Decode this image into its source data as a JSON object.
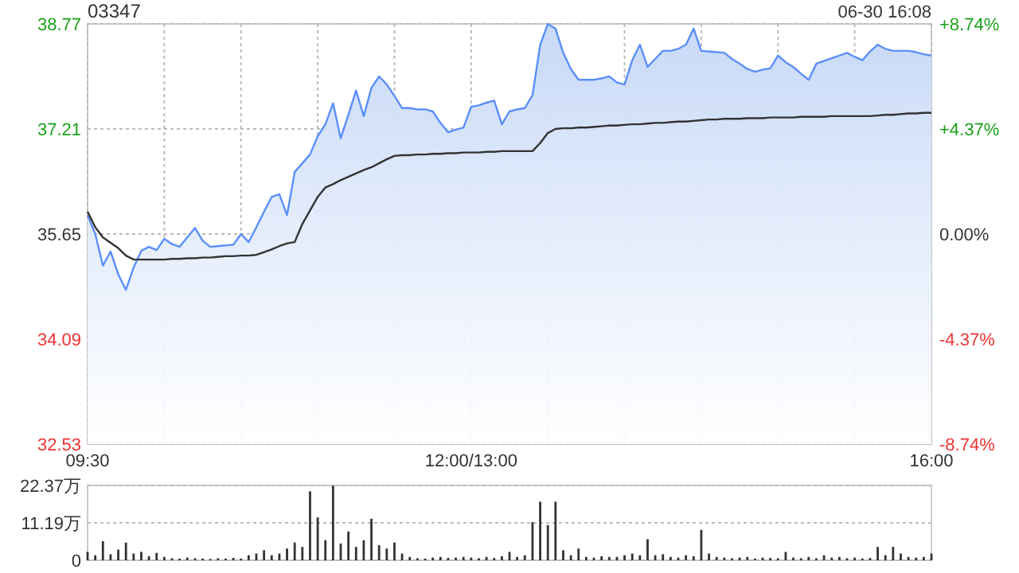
{
  "chart_data": [
    {
      "type": "area",
      "title": "03347",
      "annotations": [
        "06-30 16:08"
      ],
      "categories": [
        "09:30",
        null,
        null,
        null,
        null,
        null,
        null,
        null,
        null,
        null,
        null,
        null,
        null,
        null,
        null,
        null,
        null,
        null,
        null,
        null,
        null,
        null,
        null,
        null,
        null,
        null,
        null,
        null,
        null,
        null,
        null,
        null,
        null,
        null,
        null,
        null,
        null,
        null,
        null,
        null,
        null,
        null,
        null,
        null,
        null,
        null,
        null,
        null,
        null,
        null,
        "12:00/13:00",
        null,
        null,
        null,
        null,
        null,
        null,
        null,
        null,
        null,
        null,
        null,
        null,
        null,
        null,
        null,
        null,
        null,
        null,
        null,
        null,
        null,
        null,
        null,
        null,
        null,
        null,
        null,
        null,
        null,
        null,
        null,
        null,
        null,
        null,
        null,
        null,
        null,
        null,
        null,
        null,
        null,
        null,
        null,
        null,
        null,
        null,
        null,
        null,
        null,
        null,
        null,
        null,
        null,
        null,
        null,
        null,
        null,
        null,
        null,
        "16:00"
      ],
      "ylim": [
        32.53,
        38.77
      ],
      "yticks": [
        32.53,
        34.09,
        35.65,
        37.21,
        38.77
      ],
      "y2lim": [
        -8.74,
        8.74
      ],
      "y2ticks": [
        {
          "value": -8.74,
          "label": "-8.74%"
        },
        {
          "value": -4.37,
          "label": "-4.37%"
        },
        {
          "value": 0,
          "label": "0.00%"
        },
        {
          "value": 4.37,
          "label": "+4.37%"
        },
        {
          "value": 8.74,
          "label": "+8.74%"
        }
      ],
      "grid": true,
      "series": [
        {
          "color": "#5b8ff9",
          "values": [
            35.93,
            35.65,
            35.18,
            35.39,
            35.05,
            34.82,
            35.15,
            35.4,
            35.46,
            35.41,
            35.58,
            35.5,
            35.46,
            35.6,
            35.74,
            35.55,
            35.46,
            35.47,
            35.48,
            35.49,
            35.65,
            35.53,
            35.75,
            35.98,
            36.2,
            36.24,
            35.93,
            36.57,
            36.7,
            36.83,
            37.1,
            37.28,
            37.59,
            37.07,
            37.42,
            37.78,
            37.4,
            37.82,
            37.99,
            37.87,
            37.7,
            37.52,
            37.52,
            37.5,
            37.5,
            37.47,
            37.3,
            37.16,
            37.2,
            37.23,
            37.54,
            37.56,
            37.6,
            37.63,
            37.28,
            37.47,
            37.5,
            37.52,
            37.71,
            38.46,
            38.77,
            38.7,
            38.34,
            38.1,
            37.94,
            37.94,
            37.94,
            37.96,
            37.99,
            37.9,
            37.87,
            38.23,
            38.46,
            38.13,
            38.25,
            38.37,
            38.37,
            38.4,
            38.46,
            38.7,
            38.37,
            38.36,
            38.35,
            38.34,
            38.25,
            38.18,
            38.1,
            38.06,
            38.09,
            38.11,
            38.3,
            38.2,
            38.13,
            38.03,
            37.94,
            38.18,
            38.22,
            38.26,
            38.3,
            38.34,
            38.28,
            38.23,
            38.36,
            38.46,
            38.4,
            38.37,
            38.37,
            38.37,
            38.35,
            38.32,
            38.3
          ]
        },
        {
          "type": "line",
          "color": "#333333",
          "values": [
            35.98,
            35.75,
            35.6,
            35.52,
            35.44,
            35.33,
            35.27,
            35.27,
            35.27,
            35.27,
            35.27,
            35.28,
            35.28,
            35.29,
            35.29,
            35.3,
            35.3,
            35.31,
            35.32,
            35.32,
            35.33,
            35.33,
            35.34,
            35.38,
            35.42,
            35.47,
            35.51,
            35.53,
            35.8,
            36.0,
            36.2,
            36.34,
            36.39,
            36.45,
            36.5,
            36.55,
            36.6,
            36.64,
            36.7,
            36.76,
            36.81,
            36.82,
            36.82,
            36.83,
            36.83,
            36.84,
            36.84,
            36.85,
            36.85,
            36.86,
            36.86,
            36.86,
            36.87,
            36.87,
            36.88,
            36.88,
            36.88,
            36.88,
            36.88,
            37.0,
            37.15,
            37.21,
            37.22,
            37.22,
            37.23,
            37.23,
            37.24,
            37.25,
            37.26,
            37.26,
            37.27,
            37.28,
            37.28,
            37.29,
            37.3,
            37.3,
            37.31,
            37.32,
            37.32,
            37.33,
            37.34,
            37.35,
            37.35,
            37.36,
            37.36,
            37.36,
            37.37,
            37.37,
            37.37,
            37.38,
            37.38,
            37.38,
            37.38,
            37.39,
            37.39,
            37.39,
            37.39,
            37.4,
            37.4,
            37.4,
            37.4,
            37.4,
            37.4,
            37.41,
            37.42,
            37.42,
            37.43,
            37.44,
            37.44,
            37.45,
            37.45
          ]
        }
      ]
    },
    {
      "type": "bar",
      "color": "#333333",
      "tick_labels": "y",
      "grid": "y",
      "categories": [
        null,
        null,
        null,
        null,
        null,
        null,
        null,
        null,
        null,
        null,
        null,
        null,
        null,
        null,
        null,
        null,
        null,
        null,
        null,
        null,
        null,
        null,
        null,
        null,
        null,
        null,
        null,
        null,
        null,
        null,
        null,
        null,
        null,
        null,
        null,
        null,
        null,
        null,
        null,
        null,
        null,
        null,
        null,
        null,
        null,
        null,
        null,
        null,
        null,
        null,
        null,
        null,
        null,
        null,
        null,
        null,
        null,
        null,
        null,
        null,
        null,
        null,
        null,
        null,
        null,
        null,
        null,
        null,
        null,
        null,
        null,
        null,
        null,
        null,
        null,
        null,
        null,
        null,
        null,
        null,
        null,
        null,
        null,
        null,
        null,
        null,
        null,
        null,
        null,
        null,
        null,
        null,
        null,
        null,
        null,
        null,
        null,
        null,
        null,
        null,
        null,
        null,
        null,
        null,
        null,
        null,
        null,
        null,
        null,
        null,
        null
      ],
      "ylim": [
        0,
        22.37
      ],
      "yticks": [
        0,
        {
          "value": 11.19,
          "label": "11.19万"
        },
        {
          "value": 22.37,
          "label": "22.37万"
        }
      ],
      "values": [
        2.5,
        1.5,
        5.7,
        1.8,
        3.2,
        5.3,
        2.0,
        2.5,
        1.2,
        2.2,
        1.0,
        0.6,
        0.5,
        0.8,
        0.6,
        0.5,
        0.4,
        0.6,
        0.5,
        0.7,
        0.5,
        1.5,
        2.0,
        3.0,
        1.5,
        2.0,
        3.5,
        5.3,
        4.0,
        20.6,
        12.8,
        6.0,
        22.3,
        5.0,
        8.6,
        4.0,
        6.0,
        12.4,
        4.5,
        3.5,
        5.3,
        2.0,
        1.0,
        0.6,
        0.5,
        0.8,
        1.0,
        0.7,
        0.8,
        1.0,
        0.8,
        0.6,
        1.0,
        0.7,
        1.2,
        2.5,
        1.0,
        1.5,
        11.4,
        17.5,
        10.5,
        17.5,
        3.0,
        1.5,
        3.5,
        1.0,
        0.8,
        1.2,
        1.0,
        1.0,
        1.5,
        2.0,
        1.5,
        6.3,
        1.5,
        1.8,
        1.0,
        0.8,
        1.5,
        1.2,
        9.1,
        2.0,
        1.0,
        0.8,
        0.6,
        0.8,
        1.0,
        0.5,
        0.8,
        0.7,
        0.6,
        2.5,
        0.8,
        0.6,
        1.0,
        0.6,
        1.5,
        0.8,
        1.0,
        0.6,
        0.8,
        0.5,
        0.7,
        4.0,
        1.5,
        4.0,
        2.0,
        1.0,
        0.8,
        1.0,
        2.0
      ]
    }
  ]
}
